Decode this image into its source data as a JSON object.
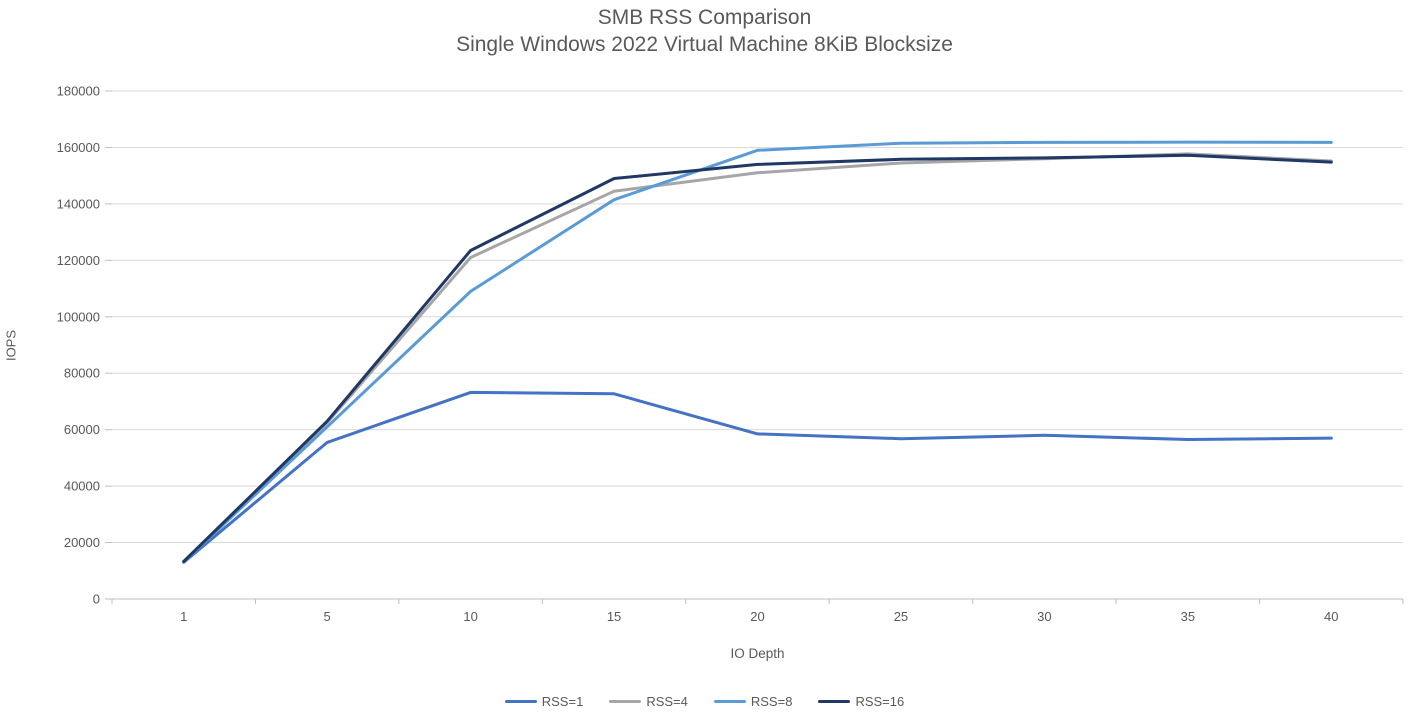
{
  "chart_data": {
    "type": "line",
    "title": "SMB RSS Comparison",
    "subtitle": "Single Windows 2022 Virtual Machine 8KiB Blocksize",
    "xlabel": "IO Depth",
    "ylabel": "IOPS",
    "categories": [
      1,
      5,
      10,
      15,
      20,
      25,
      30,
      35,
      40
    ],
    "series": [
      {
        "name": "RSS=1",
        "color": "#4472c4",
        "values": [
          13000,
          55500,
          73200,
          72700,
          58500,
          56800,
          58000,
          56500,
          57000
        ]
      },
      {
        "name": "RSS=4",
        "color": "#a6a6a6",
        "values": [
          13200,
          62500,
          121000,
          144500,
          151000,
          154500,
          156000,
          157700,
          155200
        ]
      },
      {
        "name": "RSS=8",
        "color": "#5b9bd5",
        "values": [
          13100,
          61000,
          109000,
          141500,
          159000,
          161500,
          161800,
          161900,
          161800
        ]
      },
      {
        "name": "RSS=16",
        "color": "#1f3864",
        "values": [
          13300,
          63000,
          123500,
          149000,
          154000,
          155800,
          156300,
          157200,
          154800
        ]
      }
    ],
    "y_ticks": [
      0,
      20000,
      40000,
      60000,
      80000,
      100000,
      120000,
      140000,
      160000,
      180000
    ],
    "ylim": [
      0,
      180000
    ],
    "grid": true,
    "legend_position": "bottom",
    "gridline_color": "#d9d9d9",
    "axis_line_color": "#bfbfbf",
    "tick_text_color": "#595959",
    "line_width": 3
  }
}
